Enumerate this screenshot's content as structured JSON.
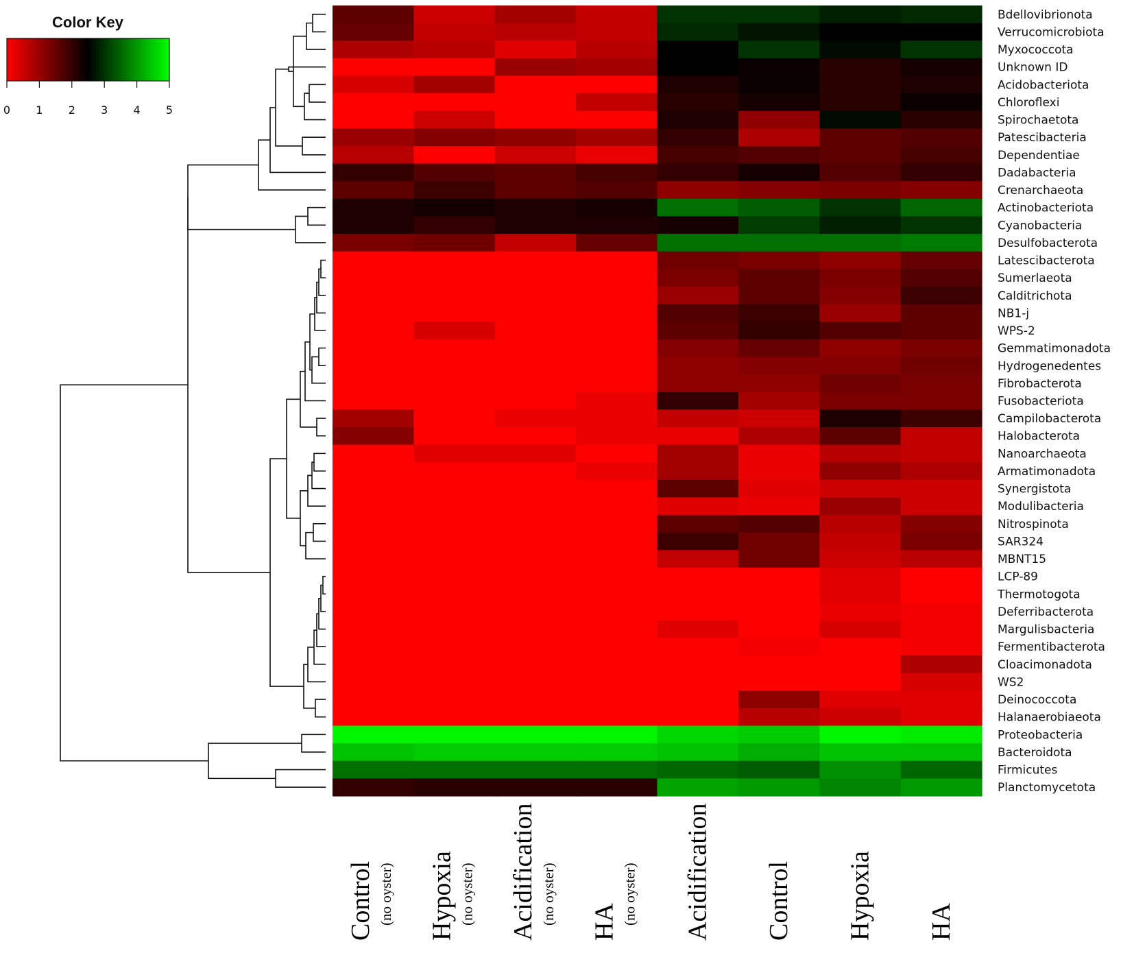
{
  "chart_data": {
    "type": "heatmap",
    "color_key": {
      "title": "Color Key",
      "ticks": [
        "0",
        "1",
        "2",
        "3",
        "4",
        "5"
      ],
      "range": [
        0,
        5
      ],
      "colors": [
        "#ff0000",
        "#000000",
        "#00ff00"
      ]
    },
    "columns": [
      {
        "main": "Control",
        "sub": "(no oyster)"
      },
      {
        "main": "Hypoxia",
        "sub": "(no oyster)"
      },
      {
        "main": "Acidification",
        "sub": "(no oyster)"
      },
      {
        "main": "HA",
        "sub": "(no oyster)"
      },
      {
        "main": "Acidification",
        "sub": ""
      },
      {
        "main": "Control",
        "sub": ""
      },
      {
        "main": "Hypoxia",
        "sub": ""
      },
      {
        "main": "HA",
        "sub": ""
      }
    ],
    "rows": [
      "Bdellovibrionota",
      "Verrucomicrobiota",
      "Myxococcota",
      "Unknown ID",
      "Acidobacteriota",
      "Chloroflexi",
      "Spirochaetota",
      "Patescibacteria",
      "Dependentiae",
      "Dadabacteria",
      "Crenarchaeota",
      "Actinobacteriota",
      "Cyanobacteria",
      "Desulfobacterota",
      "Latescibacterota",
      "Sumerlaeota",
      "Calditrichota",
      "NB1-j",
      "WPS-2",
      "Gemmatimonadota",
      "Hydrogenedentes",
      "Fibrobacterota",
      "Fusobacteriota",
      "Campilobacterota",
      "Halobacterota",
      "Nanoarchaeota",
      "Armatimonadota",
      "Synergistota",
      "Modulibacteria",
      "Nitrospinota",
      "SAR324",
      "MBNT15",
      "LCP-89",
      "Thermotogota",
      "Deferribacterota",
      "Margulisbacteria",
      "Fermentibacterota",
      "Cloacimonadota",
      "WS2",
      "Deinococcota",
      "Halanaerobiaeota",
      "Proteobacteria",
      "Bacteroidota",
      "Firmicutes",
      "Planctomycetota"
    ],
    "values": [
      [
        1.6,
        0.5,
        0.9,
        0.6,
        3.0,
        3.0,
        2.8,
        2.9
      ],
      [
        1.5,
        0.6,
        0.7,
        0.6,
        2.9,
        2.7,
        2.5,
        2.5
      ],
      [
        0.8,
        0.7,
        0.3,
        0.7,
        2.5,
        3.0,
        2.6,
        3.0
      ],
      [
        0.0,
        0.0,
        1.0,
        0.9,
        2.5,
        2.4,
        2.1,
        2.3
      ],
      [
        0.4,
        0.9,
        0.0,
        0.0,
        2.2,
        2.4,
        2.1,
        2.2
      ],
      [
        0.0,
        0.0,
        0.0,
        0.6,
        2.1,
        2.3,
        2.1,
        2.4
      ],
      [
        0.0,
        0.5,
        0.0,
        0.0,
        2.2,
        1.1,
        2.6,
        2.1
      ],
      [
        1.0,
        1.2,
        1.1,
        0.9,
        2.0,
        0.8,
        1.6,
        1.7
      ],
      [
        0.7,
        0.0,
        0.5,
        0.2,
        1.8,
        1.7,
        1.6,
        1.8
      ],
      [
        2.0,
        1.7,
        1.6,
        1.8,
        2.0,
        2.3,
        1.7,
        2.0
      ],
      [
        1.6,
        1.9,
        1.6,
        1.7,
        1.1,
        1.2,
        1.3,
        1.2
      ],
      [
        2.2,
        2.3,
        2.2,
        2.3,
        3.6,
        3.4,
        3.0,
        3.5
      ],
      [
        2.2,
        2.0,
        2.2,
        2.2,
        2.3,
        3.1,
        2.8,
        3.0
      ],
      [
        1.3,
        1.4,
        0.6,
        1.5,
        3.6,
        3.6,
        3.6,
        3.7
      ],
      [
        0.0,
        0.0,
        0.0,
        0.0,
        1.4,
        1.3,
        1.1,
        1.5
      ],
      [
        0.0,
        0.0,
        0.0,
        0.0,
        1.3,
        1.6,
        1.3,
        1.7
      ],
      [
        0.0,
        0.0,
        0.0,
        0.0,
        1.0,
        1.6,
        1.2,
        1.9
      ],
      [
        0.0,
        0.0,
        0.0,
        0.0,
        1.7,
        1.9,
        1.0,
        1.6
      ],
      [
        0.0,
        0.4,
        0.0,
        0.0,
        1.6,
        2.0,
        1.7,
        1.6
      ],
      [
        0.0,
        0.0,
        0.0,
        0.0,
        1.2,
        1.5,
        1.1,
        1.3
      ],
      [
        0.0,
        0.0,
        0.0,
        0.0,
        1.1,
        1.2,
        1.2,
        1.4
      ],
      [
        0.0,
        0.0,
        0.0,
        0.0,
        1.1,
        1.1,
        1.4,
        1.3
      ],
      [
        0.0,
        0.0,
        0.0,
        0.2,
        2.0,
        0.9,
        1.3,
        1.3
      ],
      [
        0.9,
        0.0,
        0.2,
        0.2,
        0.6,
        0.5,
        2.2,
        1.9
      ],
      [
        1.2,
        0.0,
        0.0,
        0.2,
        0.2,
        0.8,
        1.6,
        0.6
      ],
      [
        0.0,
        0.3,
        0.3,
        0.0,
        0.9,
        0.2,
        0.7,
        0.6
      ],
      [
        0.0,
        0.0,
        0.0,
        0.2,
        0.9,
        0.2,
        1.1,
        0.8
      ],
      [
        0.0,
        0.0,
        0.0,
        0.0,
        1.6,
        0.3,
        0.5,
        0.5
      ],
      [
        0.0,
        0.0,
        0.0,
        0.0,
        0.3,
        0.2,
        1.0,
        0.5
      ],
      [
        0.0,
        0.0,
        0.0,
        0.0,
        1.6,
        1.7,
        0.7,
        1.2
      ],
      [
        0.0,
        0.0,
        0.0,
        0.0,
        1.9,
        1.4,
        0.6,
        1.3
      ],
      [
        0.0,
        0.0,
        0.0,
        0.0,
        0.6,
        1.4,
        0.5,
        0.7
      ],
      [
        0.0,
        0.0,
        0.0,
        0.0,
        0.0,
        0.0,
        0.3,
        0.0
      ],
      [
        0.0,
        0.0,
        0.0,
        0.0,
        0.0,
        0.0,
        0.3,
        0.0
      ],
      [
        0.0,
        0.0,
        0.0,
        0.0,
        0.0,
        0.0,
        0.2,
        0.1
      ],
      [
        0.0,
        0.0,
        0.0,
        0.0,
        0.3,
        0.0,
        0.4,
        0.1
      ],
      [
        0.0,
        0.0,
        0.0,
        0.0,
        0.0,
        0.1,
        0.0,
        0.1
      ],
      [
        0.0,
        0.0,
        0.0,
        0.0,
        0.0,
        0.0,
        0.0,
        0.8
      ],
      [
        0.0,
        0.0,
        0.0,
        0.0,
        0.0,
        0.0,
        0.0,
        0.4
      ],
      [
        0.0,
        0.0,
        0.0,
        0.0,
        0.0,
        1.1,
        0.3,
        0.3
      ],
      [
        0.0,
        0.0,
        0.0,
        0.0,
        0.0,
        0.7,
        0.5,
        0.3
      ],
      [
        4.9,
        4.9,
        4.9,
        4.9,
        4.6,
        4.5,
        4.9,
        4.8
      ],
      [
        4.4,
        4.5,
        4.5,
        4.5,
        4.4,
        4.2,
        4.4,
        4.4
      ],
      [
        3.6,
        3.6,
        3.6,
        3.6,
        3.5,
        3.4,
        3.9,
        3.5
      ],
      [
        2.0,
        2.1,
        2.1,
        2.1,
        4.1,
        4.0,
        3.8,
        4.0
      ]
    ],
    "xlabel": "",
    "ylabel": ""
  }
}
